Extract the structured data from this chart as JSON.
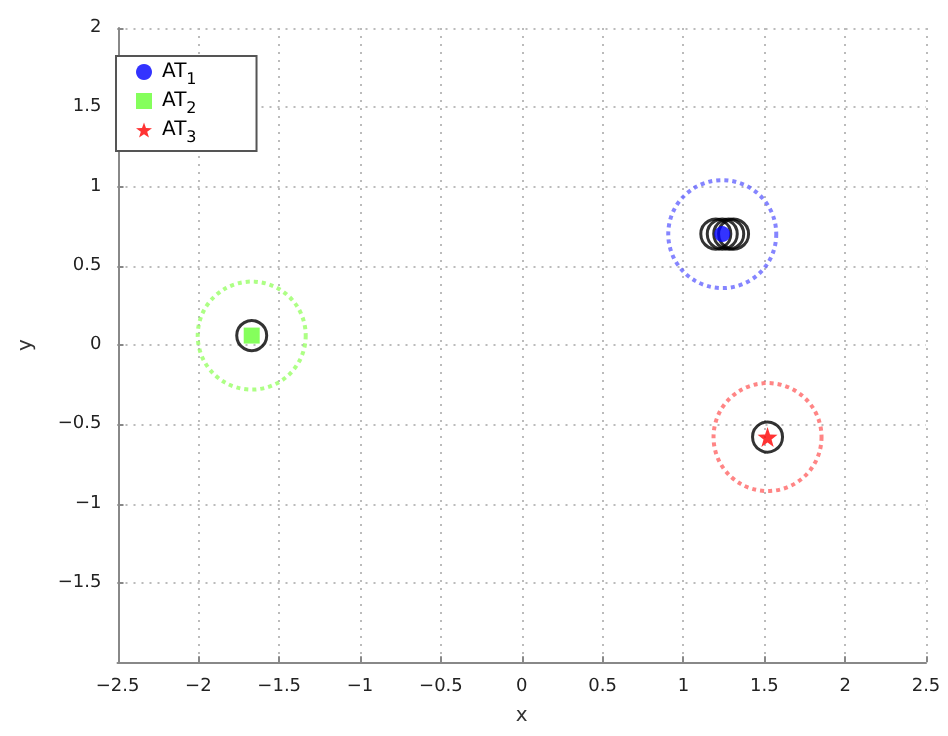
{
  "chart_data": {
    "type": "scatter",
    "xlabel": "x",
    "ylabel": "y",
    "xlim": [
      -2.5,
      2.5
    ],
    "xticks": [
      -2.5,
      -2,
      -1.5,
      -1,
      -0.5,
      0,
      0.5,
      1,
      1.5,
      2,
      2.5
    ],
    "ylim": [
      -2,
      2
    ],
    "yticks": [
      -1.5,
      -1,
      -0.5,
      0,
      0.5,
      1,
      1.5,
      2
    ],
    "grid": true,
    "legend": "top left",
    "series": [
      {
        "name": "AT$_{1}$",
        "color": "#0000ff",
        "marker": "circle",
        "x": [
          1.24
        ],
        "values": [
          0.7
        ]
      },
      {
        "name": "AT$_{2}$",
        "color": "#66ff33",
        "marker": "square",
        "x": [
          -1.67
        ],
        "values": [
          0.06
        ]
      },
      {
        "name": "AT$_{3}$",
        "color": "#ff0000",
        "marker": "star",
        "x": [
          1.52
        ],
        "values": [
          -0.58
        ]
      },
      {
        "color": "#6666ff",
        "marker": "circle",
        "line_style": "dotted",
        "x": [
          1.24
        ],
        "values": [
          0.7
        ]
      },
      {
        "color": "#99ff66",
        "marker": "circle",
        "line_style": "dotted",
        "x": [
          -1.67
        ],
        "values": [
          0.06
        ]
      },
      {
        "color": "#ff6666",
        "marker": "circle",
        "line_style": "dotted",
        "x": [
          1.52
        ],
        "values": [
          -0.58
        ]
      },
      {
        "color": "#000000",
        "marker": "circle",
        "line_style": "solid",
        "x": [
          1.2,
          1.24,
          1.28,
          1.31,
          -1.67,
          1.52
        ],
        "values": [
          0.7,
          0.7,
          0.7,
          0.7,
          0.06,
          -0.58
        ]
      }
    ]
  }
}
